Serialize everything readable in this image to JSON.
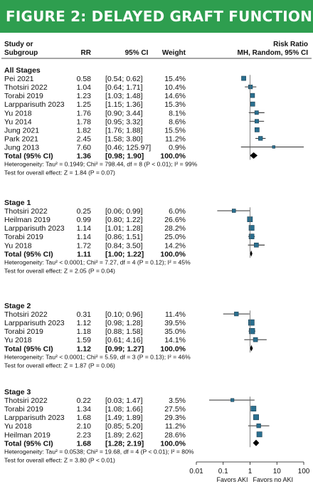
{
  "banner": "FIGURE 2: DELAYED GRAFT FUNCTION",
  "headers": {
    "study_line1": "Study or",
    "study_line2": "Subgroup",
    "rr": "RR",
    "ci": "95% CI",
    "weight": "Weight",
    "effect_line1": "Risk Ratio",
    "effect_line2": "MH, Random, 95% CI"
  },
  "colors": {
    "box": "#2a6f8f",
    "banner": "#2e9e4f"
  },
  "chart_data": {
    "type": "forest",
    "xscale": "log",
    "xlim": [
      0.01,
      100
    ],
    "xticks": [
      "0.01",
      "0.1",
      "1",
      "10",
      "100"
    ],
    "favors_left": "Favors AKI",
    "favors_right": "Favors no AKI",
    "groups": [
      {
        "label": "All Stages",
        "studies": [
          {
            "study": "Pei 2021",
            "rr": 0.58,
            "rr_text": "0.58",
            "lo": 0.54,
            "hi": 0.62,
            "ci_text": "[0.54; 0.62]",
            "weight": "15.4%"
          },
          {
            "study": "Thotsiri 2022",
            "rr": 1.04,
            "rr_text": "1.04",
            "lo": 0.64,
            "hi": 1.71,
            "ci_text": "[0.64; 1.71]",
            "weight": "10.4%"
          },
          {
            "study": "Torabi 2019",
            "rr": 1.23,
            "rr_text": "1.23",
            "lo": 1.03,
            "hi": 1.48,
            "ci_text": "[1.03; 1.48]",
            "weight": "14.6%"
          },
          {
            "study": "Larpparisuth 2023",
            "rr": 1.25,
            "rr_text": "1.25",
            "lo": 1.15,
            "hi": 1.36,
            "ci_text": "[1.15; 1.36]",
            "weight": "15.3%"
          },
          {
            "study": "Yu 2018",
            "rr": 1.76,
            "rr_text": "1.76",
            "lo": 0.9,
            "hi": 3.44,
            "ci_text": "[0.90; 3.44]",
            "weight": "8.1%"
          },
          {
            "study": "Yu 2014",
            "rr": 1.78,
            "rr_text": "1.78",
            "lo": 0.95,
            "hi": 3.32,
            "ci_text": "[0.95; 3.32]",
            "weight": "8.6%"
          },
          {
            "study": "Jung 2021",
            "rr": 1.82,
            "rr_text": "1.82",
            "lo": 1.76,
            "hi": 1.88,
            "ci_text": "[1.76; 1.88]",
            "weight": "15.5%"
          },
          {
            "study": "Park 2021",
            "rr": 2.45,
            "rr_text": "2.45",
            "lo": 1.58,
            "hi": 3.8,
            "ci_text": "[1.58; 3.80]",
            "weight": "11.2%"
          },
          {
            "study": "Jung 2013",
            "rr": 7.6,
            "rr_text": "7.60",
            "lo": 0.46,
            "hi": 125.97,
            "ci_text": "[0.46; 125.97]",
            "weight": "0.9%"
          }
        ],
        "total": {
          "label": "Total (95% CI)",
          "rr": 1.36,
          "rr_text": "1.36",
          "lo": 0.98,
          "hi": 1.9,
          "ci_text": "[0.98; 1.90]",
          "weight": "100.0%"
        },
        "heterogeneity": "Heterogeneity: Tau² = 0.1949; Chi² = 798.44, df = 8 (P < 0.01); I² = 99%",
        "overall": "Test for overall effect: Z = 1.84 (P = 0.07)"
      },
      {
        "label": "Stage 1",
        "studies": [
          {
            "study": "Thotsiri 2022",
            "rr": 0.25,
            "rr_text": "0.25",
            "lo": 0.06,
            "hi": 0.99,
            "ci_text": "[0.06; 0.99]",
            "weight": "6.0%"
          },
          {
            "study": "Heilman 2019",
            "rr": 0.99,
            "rr_text": "0.99",
            "lo": 0.8,
            "hi": 1.22,
            "ci_text": "[0.80; 1.22]",
            "weight": "26.6%"
          },
          {
            "study": "Larpparisuth 2023",
            "rr": 1.14,
            "rr_text": "1.14",
            "lo": 1.01,
            "hi": 1.28,
            "ci_text": "[1.01; 1.28]",
            "weight": "28.2%"
          },
          {
            "study": "Torabi 2019",
            "rr": 1.14,
            "rr_text": "1.14",
            "lo": 0.86,
            "hi": 1.51,
            "ci_text": "[0.86; 1.51]",
            "weight": "25.0%"
          },
          {
            "study": "Yu 2018",
            "rr": 1.72,
            "rr_text": "1.72",
            "lo": 0.84,
            "hi": 3.5,
            "ci_text": "[0.84; 3.50]",
            "weight": "14.2%"
          }
        ],
        "total": {
          "label": "Total (95% CI)",
          "rr": 1.11,
          "rr_text": "1.11",
          "lo": 1.0,
          "hi": 1.22,
          "ci_text": "[1.00; 1.22]",
          "weight": "100.0%"
        },
        "heterogeneity": "Heterogeneity: Tau² < 0.0001; Chi² = 7.27, df = 4 (P = 0.12); I² = 45%",
        "overall": "Test for overall effect: Z = 2.05 (P = 0.04)"
      },
      {
        "label": "Stage 2",
        "studies": [
          {
            "study": "Thotsiri 2022",
            "rr": 0.31,
            "rr_text": "0.31",
            "lo": 0.1,
            "hi": 0.96,
            "ci_text": "[0.10; 0.96]",
            "weight": "11.4%"
          },
          {
            "study": "Larpparisuth 2023",
            "rr": 1.12,
            "rr_text": "1.12",
            "lo": 0.98,
            "hi": 1.28,
            "ci_text": "[0.98; 1.28]",
            "weight": "39.5%"
          },
          {
            "study": "Torabi 2019",
            "rr": 1.18,
            "rr_text": "1.18",
            "lo": 0.88,
            "hi": 1.58,
            "ci_text": "[0.88; 1.58]",
            "weight": "35.0%"
          },
          {
            "study": "Yu 2018",
            "rr": 1.59,
            "rr_text": "1.59",
            "lo": 0.61,
            "hi": 4.16,
            "ci_text": "[0.61; 4.16]",
            "weight": "14.1%"
          }
        ],
        "total": {
          "label": "Total (95% CI)",
          "rr": 1.12,
          "rr_text": "1.12",
          "lo": 0.99,
          "hi": 1.27,
          "ci_text": "[0.99; 1.27]",
          "weight": "100.0%"
        },
        "heterogeneity": "Heterogeneity: Tau² < 0.0001; Chi² = 5.59, df = 3 (P = 0.13); I² = 46%",
        "overall": "Test for overall effect: Z = 1.87 (P = 0.06)"
      },
      {
        "label": "Stage 3",
        "studies": [
          {
            "study": "Thotsiri 2022",
            "rr": 0.22,
            "rr_text": "0.22",
            "lo": 0.03,
            "hi": 1.47,
            "ci_text": "[0.03; 1.47]",
            "weight": "3.5%"
          },
          {
            "study": "Torabi 2019",
            "rr": 1.34,
            "rr_text": "1.34",
            "lo": 1.08,
            "hi": 1.66,
            "ci_text": "[1.08; 1.66]",
            "weight": "27.5%"
          },
          {
            "study": "Larpparisuth 2023",
            "rr": 1.68,
            "rr_text": "1.68",
            "lo": 1.49,
            "hi": 1.89,
            "ci_text": "[1.49; 1.89]",
            "weight": "29.3%"
          },
          {
            "study": "Yu 2018",
            "rr": 2.1,
            "rr_text": "2.10",
            "lo": 0.85,
            "hi": 5.2,
            "ci_text": "[0.85; 5.20]",
            "weight": "11.2%"
          },
          {
            "study": "Heilman 2019",
            "rr": 2.23,
            "rr_text": "2.23",
            "lo": 1.89,
            "hi": 2.62,
            "ci_text": "[1.89; 2.62]",
            "weight": "28.6%"
          }
        ],
        "total": {
          "label": "Total (95% CI)",
          "rr": 1.68,
          "rr_text": "1.68",
          "lo": 1.28,
          "hi": 2.19,
          "ci_text": "[1.28; 2.19]",
          "weight": "100.0%"
        },
        "heterogeneity": "Heterogeneity: Tau² = 0.0538; Chi² = 19.68, df = 4 (P < 0.01); I² = 80%",
        "overall": "Test for overall effect: Z = 3.80 (P < 0.01)"
      }
    ]
  }
}
